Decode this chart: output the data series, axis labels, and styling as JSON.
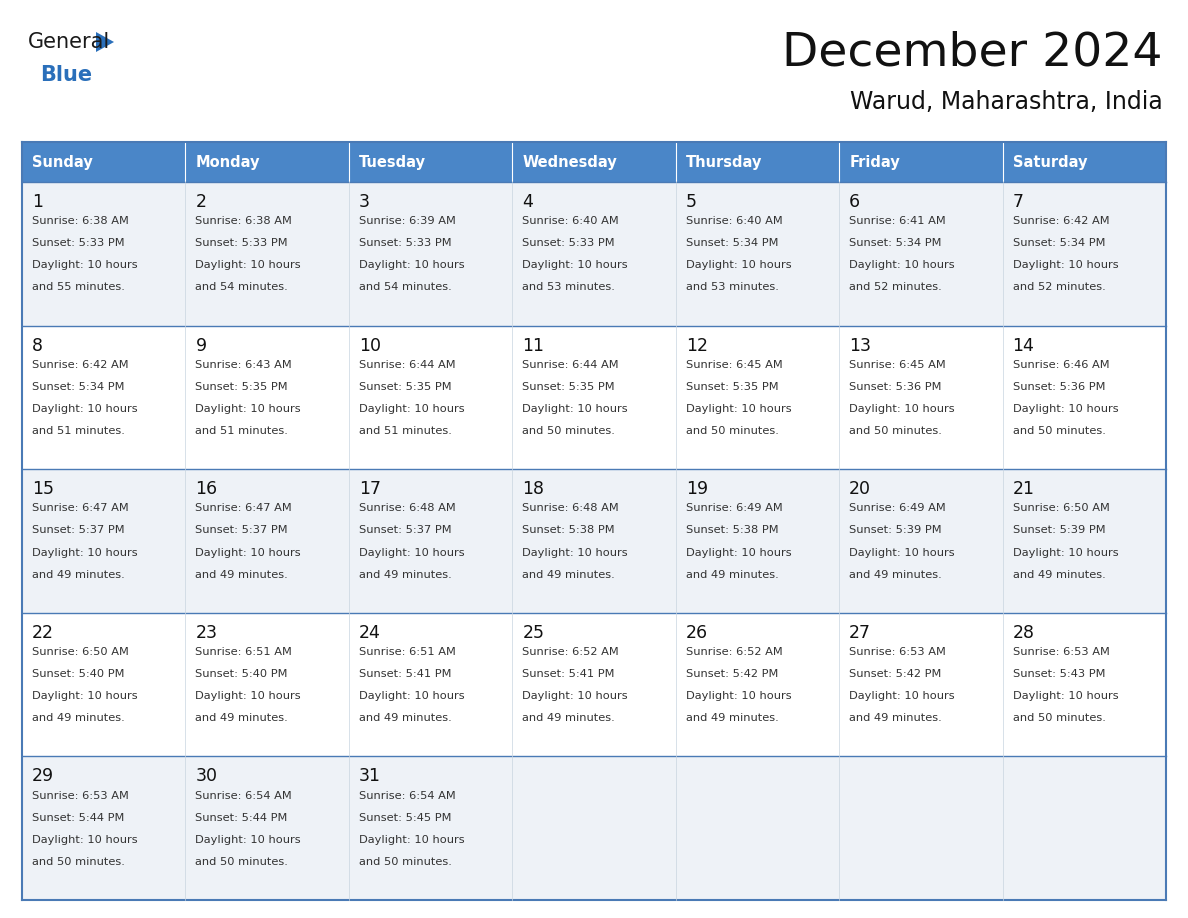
{
  "title": "December 2024",
  "subtitle": "Warud, Maharashtra, India",
  "header_color": "#4a86c8",
  "header_text_color": "#ffffff",
  "row_bg_odd": "#eef2f7",
  "row_bg_even": "#ffffff",
  "border_color": "#4a7ab5",
  "text_color": "#333333",
  "day_num_color": "#111111",
  "day_names": [
    "Sunday",
    "Monday",
    "Tuesday",
    "Wednesday",
    "Thursday",
    "Friday",
    "Saturday"
  ],
  "days": [
    {
      "day": 1,
      "col": 0,
      "row": 0,
      "sunrise": "6:38 AM",
      "sunset": "5:33 PM",
      "daylight": "10 hours",
      "daylight2": "and 55 minutes."
    },
    {
      "day": 2,
      "col": 1,
      "row": 0,
      "sunrise": "6:38 AM",
      "sunset": "5:33 PM",
      "daylight": "10 hours",
      "daylight2": "and 54 minutes."
    },
    {
      "day": 3,
      "col": 2,
      "row": 0,
      "sunrise": "6:39 AM",
      "sunset": "5:33 PM",
      "daylight": "10 hours",
      "daylight2": "and 54 minutes."
    },
    {
      "day": 4,
      "col": 3,
      "row": 0,
      "sunrise": "6:40 AM",
      "sunset": "5:33 PM",
      "daylight": "10 hours",
      "daylight2": "and 53 minutes."
    },
    {
      "day": 5,
      "col": 4,
      "row": 0,
      "sunrise": "6:40 AM",
      "sunset": "5:34 PM",
      "daylight": "10 hours",
      "daylight2": "and 53 minutes."
    },
    {
      "day": 6,
      "col": 5,
      "row": 0,
      "sunrise": "6:41 AM",
      "sunset": "5:34 PM",
      "daylight": "10 hours",
      "daylight2": "and 52 minutes."
    },
    {
      "day": 7,
      "col": 6,
      "row": 0,
      "sunrise": "6:42 AM",
      "sunset": "5:34 PM",
      "daylight": "10 hours",
      "daylight2": "and 52 minutes."
    },
    {
      "day": 8,
      "col": 0,
      "row": 1,
      "sunrise": "6:42 AM",
      "sunset": "5:34 PM",
      "daylight": "10 hours",
      "daylight2": "and 51 minutes."
    },
    {
      "day": 9,
      "col": 1,
      "row": 1,
      "sunrise": "6:43 AM",
      "sunset": "5:35 PM",
      "daylight": "10 hours",
      "daylight2": "and 51 minutes."
    },
    {
      "day": 10,
      "col": 2,
      "row": 1,
      "sunrise": "6:44 AM",
      "sunset": "5:35 PM",
      "daylight": "10 hours",
      "daylight2": "and 51 minutes."
    },
    {
      "day": 11,
      "col": 3,
      "row": 1,
      "sunrise": "6:44 AM",
      "sunset": "5:35 PM",
      "daylight": "10 hours",
      "daylight2": "and 50 minutes."
    },
    {
      "day": 12,
      "col": 4,
      "row": 1,
      "sunrise": "6:45 AM",
      "sunset": "5:35 PM",
      "daylight": "10 hours",
      "daylight2": "and 50 minutes."
    },
    {
      "day": 13,
      "col": 5,
      "row": 1,
      "sunrise": "6:45 AM",
      "sunset": "5:36 PM",
      "daylight": "10 hours",
      "daylight2": "and 50 minutes."
    },
    {
      "day": 14,
      "col": 6,
      "row": 1,
      "sunrise": "6:46 AM",
      "sunset": "5:36 PM",
      "daylight": "10 hours",
      "daylight2": "and 50 minutes."
    },
    {
      "day": 15,
      "col": 0,
      "row": 2,
      "sunrise": "6:47 AM",
      "sunset": "5:37 PM",
      "daylight": "10 hours",
      "daylight2": "and 49 minutes."
    },
    {
      "day": 16,
      "col": 1,
      "row": 2,
      "sunrise": "6:47 AM",
      "sunset": "5:37 PM",
      "daylight": "10 hours",
      "daylight2": "and 49 minutes."
    },
    {
      "day": 17,
      "col": 2,
      "row": 2,
      "sunrise": "6:48 AM",
      "sunset": "5:37 PM",
      "daylight": "10 hours",
      "daylight2": "and 49 minutes."
    },
    {
      "day": 18,
      "col": 3,
      "row": 2,
      "sunrise": "6:48 AM",
      "sunset": "5:38 PM",
      "daylight": "10 hours",
      "daylight2": "and 49 minutes."
    },
    {
      "day": 19,
      "col": 4,
      "row": 2,
      "sunrise": "6:49 AM",
      "sunset": "5:38 PM",
      "daylight": "10 hours",
      "daylight2": "and 49 minutes."
    },
    {
      "day": 20,
      "col": 5,
      "row": 2,
      "sunrise": "6:49 AM",
      "sunset": "5:39 PM",
      "daylight": "10 hours",
      "daylight2": "and 49 minutes."
    },
    {
      "day": 21,
      "col": 6,
      "row": 2,
      "sunrise": "6:50 AM",
      "sunset": "5:39 PM",
      "daylight": "10 hours",
      "daylight2": "and 49 minutes."
    },
    {
      "day": 22,
      "col": 0,
      "row": 3,
      "sunrise": "6:50 AM",
      "sunset": "5:40 PM",
      "daylight": "10 hours",
      "daylight2": "and 49 minutes."
    },
    {
      "day": 23,
      "col": 1,
      "row": 3,
      "sunrise": "6:51 AM",
      "sunset": "5:40 PM",
      "daylight": "10 hours",
      "daylight2": "and 49 minutes."
    },
    {
      "day": 24,
      "col": 2,
      "row": 3,
      "sunrise": "6:51 AM",
      "sunset": "5:41 PM",
      "daylight": "10 hours",
      "daylight2": "and 49 minutes."
    },
    {
      "day": 25,
      "col": 3,
      "row": 3,
      "sunrise": "6:52 AM",
      "sunset": "5:41 PM",
      "daylight": "10 hours",
      "daylight2": "and 49 minutes."
    },
    {
      "day": 26,
      "col": 4,
      "row": 3,
      "sunrise": "6:52 AM",
      "sunset": "5:42 PM",
      "daylight": "10 hours",
      "daylight2": "and 49 minutes."
    },
    {
      "day": 27,
      "col": 5,
      "row": 3,
      "sunrise": "6:53 AM",
      "sunset": "5:42 PM",
      "daylight": "10 hours",
      "daylight2": "and 49 minutes."
    },
    {
      "day": 28,
      "col": 6,
      "row": 3,
      "sunrise": "6:53 AM",
      "sunset": "5:43 PM",
      "daylight": "10 hours",
      "daylight2": "and 50 minutes."
    },
    {
      "day": 29,
      "col": 0,
      "row": 4,
      "sunrise": "6:53 AM",
      "sunset": "5:44 PM",
      "daylight": "10 hours",
      "daylight2": "and 50 minutes."
    },
    {
      "day": 30,
      "col": 1,
      "row": 4,
      "sunrise": "6:54 AM",
      "sunset": "5:44 PM",
      "daylight": "10 hours",
      "daylight2": "and 50 minutes."
    },
    {
      "day": 31,
      "col": 2,
      "row": 4,
      "sunrise": "6:54 AM",
      "sunset": "5:45 PM",
      "daylight": "10 hours",
      "daylight2": "and 50 minutes."
    }
  ],
  "num_rows": 5,
  "logo_general_color": "#1a1a1a",
  "logo_blue_color": "#2a6fba",
  "logo_triangle_color": "#2a6fba"
}
